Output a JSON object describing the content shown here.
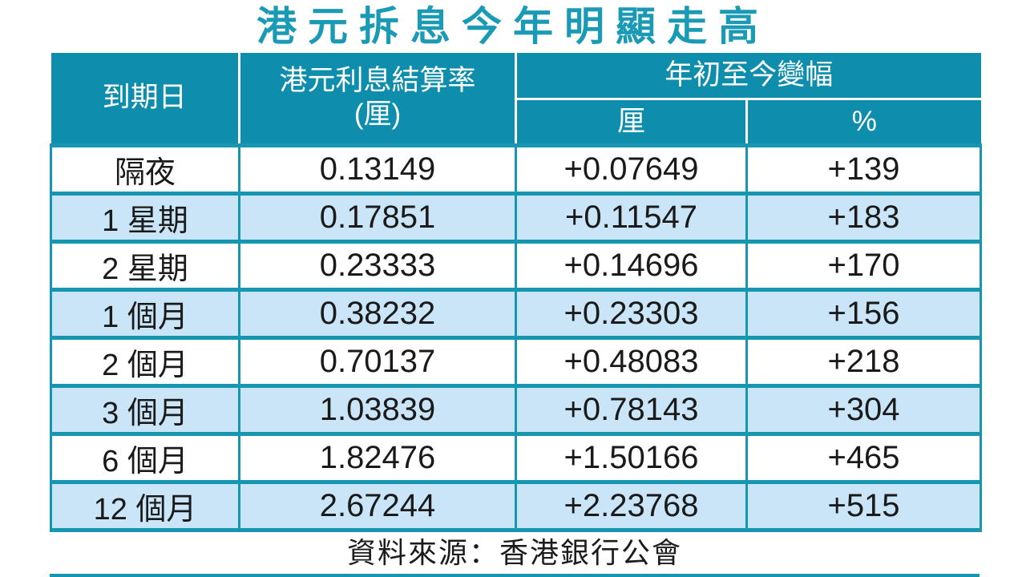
{
  "title": "港元拆息今年明顯走高",
  "table": {
    "headers": {
      "maturity": "到期日",
      "rate_line1": "港元利息結算率",
      "rate_line2": "(厘)",
      "change_group": "年初至今變幅",
      "change_unit_points": "厘",
      "change_unit_percent": "%"
    },
    "rows": [
      {
        "maturity": "隔夜",
        "rate": "0.13149",
        "change_points": "+0.07649",
        "change_percent": "+139"
      },
      {
        "maturity": "1 星期",
        "rate": "0.17851",
        "change_points": "+0.11547",
        "change_percent": "+183"
      },
      {
        "maturity": "2 星期",
        "rate": "0.23333",
        "change_points": "+0.14696",
        "change_percent": "+170"
      },
      {
        "maturity": "1 個月",
        "rate": "0.38232",
        "change_points": "+0.23303",
        "change_percent": "+156"
      },
      {
        "maturity": "2 個月",
        "rate": "0.70137",
        "change_points": "+0.48083",
        "change_percent": "+218"
      },
      {
        "maturity": "3 個月",
        "rate": "1.03839",
        "change_points": "+0.78143",
        "change_percent": "+304"
      },
      {
        "maturity": "6 個月",
        "rate": "1.82476",
        "change_points": "+1.50166",
        "change_percent": "+465"
      },
      {
        "maturity": "12 個月",
        "rate": "2.67244",
        "change_points": "+2.23768",
        "change_percent": "+515"
      }
    ]
  },
  "source": "資料來源：香港銀行公會",
  "colors": {
    "header_teal": "#0e8dac",
    "border_teal": "#1796b2",
    "title_teal": "#1a9ab4",
    "row_alt_blue": "#c9e5f7",
    "text_dark": "#1a1a1a"
  },
  "chart_data": {
    "type": "table",
    "title": "港元拆息今年明顯走高",
    "columns": [
      "到期日",
      "港元利息結算率(厘)",
      "年初至今變幅(厘)",
      "年初至今變幅(%)"
    ],
    "rows": [
      [
        "隔夜",
        0.13149,
        "+0.07649",
        "+139"
      ],
      [
        "1 星期",
        0.17851,
        "+0.11547",
        "+183"
      ],
      [
        "2 星期",
        0.23333,
        "+0.14696",
        "+170"
      ],
      [
        "1 個月",
        0.38232,
        "+0.23303",
        "+156"
      ],
      [
        "2 個月",
        0.70137,
        "+0.48083",
        "+218"
      ],
      [
        "3 個月",
        1.03839,
        "+0.78143",
        "+304"
      ],
      [
        "6 個月",
        1.82476,
        "+1.50166",
        "+465"
      ],
      [
        "12 個月",
        2.67244,
        "+2.23768",
        "+515"
      ]
    ],
    "source": "資料來源：香港銀行公會"
  }
}
